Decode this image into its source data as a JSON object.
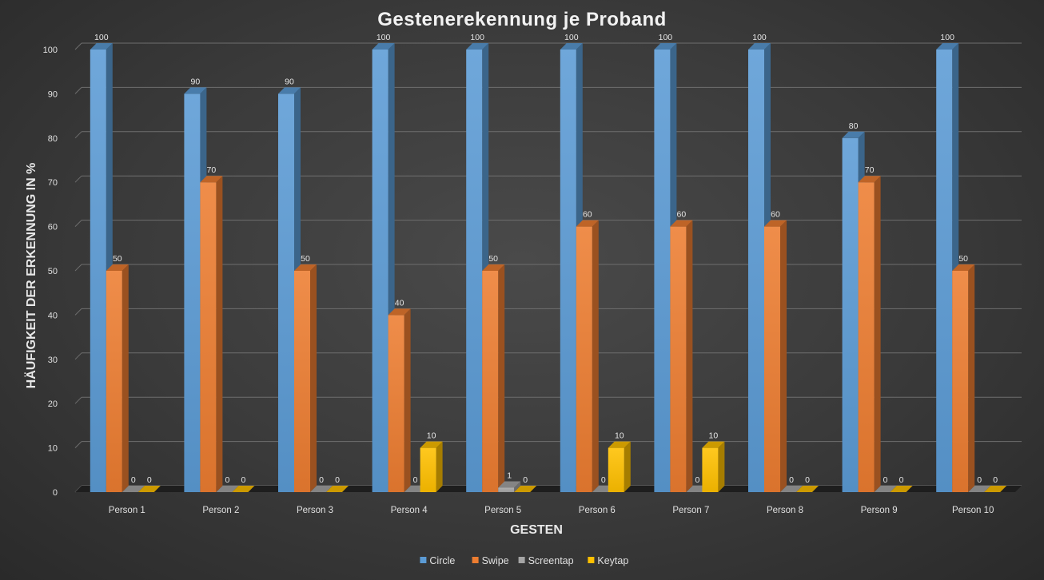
{
  "chart_data": {
    "type": "bar",
    "title": "Gestenerekennung je Proband",
    "xlabel": "GESTEN",
    "ylabel": "HÄUFIGKEIT DER ERKENNUNG IN %",
    "ylim": [
      0,
      100
    ],
    "yticks": [
      0,
      10,
      20,
      30,
      40,
      50,
      60,
      70,
      80,
      90,
      100
    ],
    "grid": true,
    "legend_position": "bottom",
    "categories": [
      "Person 1",
      "Person 2",
      "Person 3",
      "Person 4",
      "Person 5",
      "Person 6",
      "Person 7",
      "Person 8",
      "Person 9",
      "Person 10"
    ],
    "series": [
      {
        "name": "Circle",
        "color": "#5b9bd5",
        "values": [
          100,
          90,
          90,
          100,
          100,
          100,
          100,
          100,
          80,
          100
        ]
      },
      {
        "name": "Swipe",
        "color": "#ed7d31",
        "values": [
          50,
          70,
          50,
          40,
          50,
          60,
          60,
          60,
          70,
          50
        ]
      },
      {
        "name": "Screentap",
        "color": "#a5a5a5",
        "values": [
          0,
          0,
          0,
          0,
          1,
          0,
          0,
          0,
          0,
          0
        ]
      },
      {
        "name": "Keytap",
        "color": "#ffc000",
        "values": [
          0,
          0,
          0,
          10,
          0,
          10,
          10,
          0,
          0,
          0
        ]
      }
    ]
  }
}
